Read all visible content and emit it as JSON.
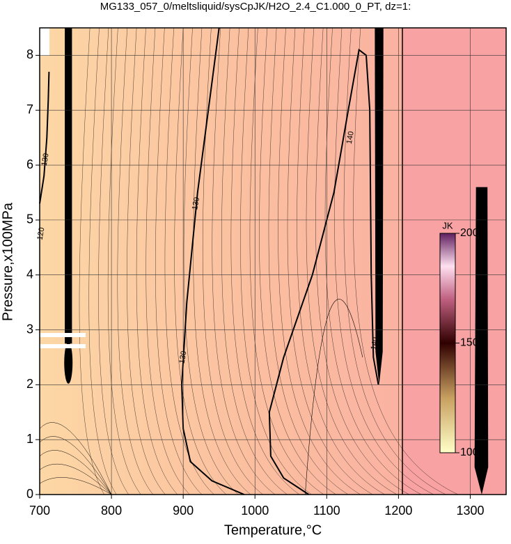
{
  "chart_data": {
    "type": "contour",
    "title": "MG133_057_0/meltsliquid/sysCpJK/H2O_2.4_C1.000_0_PT, dz=1:",
    "x_label": "Temperature,°C",
    "y_label": "Pressure,x100MPa",
    "xlim": [
      700,
      1350
    ],
    "ylim": [
      0,
      8.5
    ],
    "xticks": [
      700,
      800,
      900,
      1000,
      1100,
      1200,
      1300
    ],
    "yticks": [
      0,
      1,
      2,
      3,
      4,
      5,
      6,
      7,
      8
    ],
    "grid": true,
    "contours": [
      {
        "level": 130,
        "x": [
          950,
          935,
          920,
          905,
          898,
          900,
          910,
          940,
          985
        ],
        "y": [
          8.5,
          7,
          5.5,
          3.5,
          2,
          1.2,
          0.6,
          0.25,
          0
        ]
      },
      {
        "level": 140,
        "x": [
          1075,
          1040,
          1022,
          1020,
          1040,
          1080,
          1110,
          1130,
          1145,
          1155,
          1160,
          1162,
          1165,
          1172
        ],
        "y": [
          0,
          0.3,
          0.7,
          1.5,
          2.5,
          4,
          5.5,
          7,
          8.1,
          8,
          7,
          4,
          2.5,
          2
        ]
      },
      {
        "level": 130,
        "x": [
          700,
          706,
          710,
          712,
          713
        ],
        "y": [
          5.3,
          5.8,
          6.5,
          7.2,
          7.7
        ]
      }
    ],
    "contour_labels": [
      {
        "value": 130,
        "x": 918,
        "y": 5.3
      },
      {
        "value": 140,
        "x": 1133,
        "y": 6.5
      },
      {
        "value": 130,
        "x": 900,
        "y": 2.5
      },
      {
        "value": 140,
        "x": 1167,
        "y": 2.75
      },
      {
        "value": 130,
        "x": 708,
        "y": 6.1
      },
      {
        "value": 120,
        "x": 702,
        "y": 4.75
      }
    ],
    "colorbar": {
      "label": "JK",
      "lim": [
        100,
        200
      ],
      "ticks": [
        100,
        150,
        200
      ]
    }
  }
}
